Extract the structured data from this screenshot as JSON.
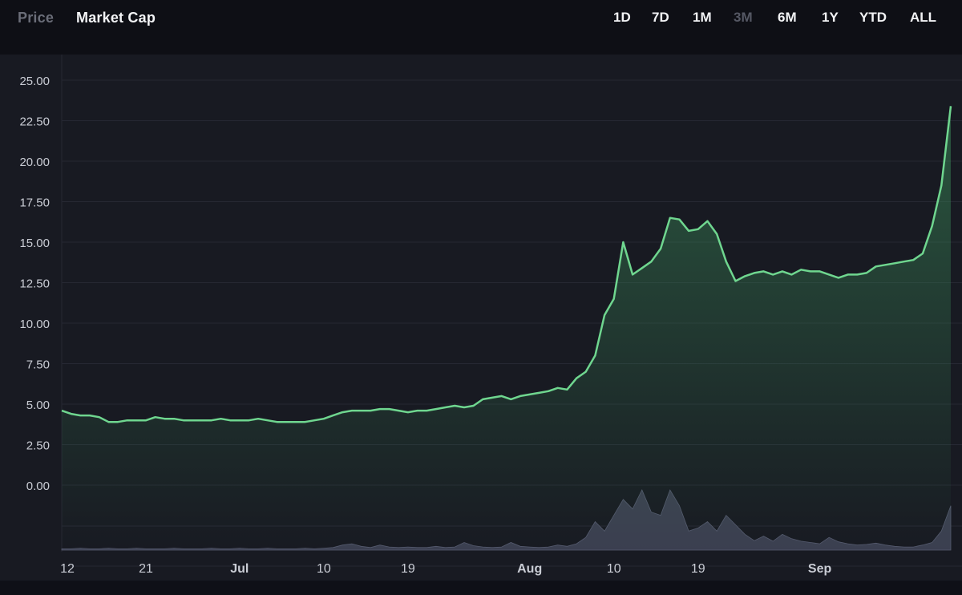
{
  "tabs": [
    {
      "label": "Price",
      "active": false
    },
    {
      "label": "Market Cap",
      "active": true
    }
  ],
  "ranges": [
    "1D",
    "7D",
    "1M",
    "3M",
    "6M",
    "1Y",
    "YTD",
    "ALL"
  ],
  "selected_range": "3M",
  "colors": {
    "line": "#6fd68f",
    "volume": "#3b3f50",
    "grid": "#262833",
    "axis_text": "#c9ccd4",
    "background": "#181a22"
  },
  "chart_data": {
    "type": "area",
    "xlabel": "",
    "ylabel": "",
    "ylim": [
      0,
      25
    ],
    "y_ticks": [
      "25.00",
      "22.50",
      "20.00",
      "17.50",
      "15.00",
      "12.50",
      "10.00",
      "7.50",
      "5.00",
      "2.50",
      "0.00"
    ],
    "x_ticks": [
      {
        "label": "12",
        "day": 0
      },
      {
        "label": "21",
        "day": 9
      },
      {
        "label": "Jul",
        "day": 19
      },
      {
        "label": "10",
        "day": 28
      },
      {
        "label": "19",
        "day": 37
      },
      {
        "label": "Aug",
        "day": 50
      },
      {
        "label": "10",
        "day": 59
      },
      {
        "label": "19",
        "day": 68
      },
      {
        "label": "Sep",
        "day": 81
      }
    ],
    "grid": true,
    "series": [
      {
        "points": [
          [
            0,
            4.6
          ],
          [
            1,
            4.4
          ],
          [
            2,
            4.3
          ],
          [
            3,
            4.3
          ],
          [
            4,
            4.2
          ],
          [
            5,
            3.9
          ],
          [
            6,
            3.9
          ],
          [
            7,
            4.0
          ],
          [
            8,
            4.0
          ],
          [
            9,
            4.0
          ],
          [
            10,
            4.2
          ],
          [
            11,
            4.1
          ],
          [
            12,
            4.1
          ],
          [
            13,
            4.0
          ],
          [
            14,
            4.0
          ],
          [
            15,
            4.0
          ],
          [
            16,
            4.0
          ],
          [
            17,
            4.1
          ],
          [
            18,
            4.0
          ],
          [
            19,
            4.0
          ],
          [
            20,
            4.0
          ],
          [
            21,
            4.1
          ],
          [
            22,
            4.0
          ],
          [
            23,
            3.9
          ],
          [
            24,
            3.9
          ],
          [
            25,
            3.9
          ],
          [
            26,
            3.9
          ],
          [
            27,
            4.0
          ],
          [
            28,
            4.1
          ],
          [
            29,
            4.3
          ],
          [
            30,
            4.5
          ],
          [
            31,
            4.6
          ],
          [
            32,
            4.6
          ],
          [
            33,
            4.6
          ],
          [
            34,
            4.7
          ],
          [
            35,
            4.7
          ],
          [
            36,
            4.6
          ],
          [
            37,
            4.5
          ],
          [
            38,
            4.6
          ],
          [
            39,
            4.6
          ],
          [
            40,
            4.7
          ],
          [
            41,
            4.8
          ],
          [
            42,
            4.9
          ],
          [
            43,
            4.8
          ],
          [
            44,
            4.9
          ],
          [
            45,
            5.3
          ],
          [
            46,
            5.4
          ],
          [
            47,
            5.5
          ],
          [
            48,
            5.3
          ],
          [
            49,
            5.5
          ],
          [
            50,
            5.6
          ],
          [
            51,
            5.7
          ],
          [
            52,
            5.8
          ],
          [
            53,
            6.0
          ],
          [
            54,
            5.9
          ],
          [
            55,
            6.6
          ],
          [
            56,
            7.0
          ],
          [
            57,
            8.0
          ],
          [
            58,
            10.5
          ],
          [
            59,
            11.5
          ],
          [
            60,
            15.0
          ],
          [
            61,
            13.0
          ],
          [
            62,
            13.4
          ],
          [
            63,
            13.8
          ],
          [
            64,
            14.6
          ],
          [
            65,
            16.5
          ],
          [
            66,
            16.4
          ],
          [
            67,
            15.7
          ],
          [
            68,
            15.8
          ],
          [
            69,
            16.3
          ],
          [
            70,
            15.5
          ],
          [
            71,
            13.8
          ],
          [
            72,
            12.6
          ],
          [
            73,
            12.9
          ],
          [
            74,
            13.1
          ],
          [
            75,
            13.2
          ],
          [
            76,
            13.0
          ],
          [
            77,
            13.2
          ],
          [
            78,
            13.0
          ],
          [
            79,
            13.3
          ],
          [
            80,
            13.2
          ],
          [
            81,
            13.2
          ],
          [
            82,
            13.0
          ],
          [
            83,
            12.8
          ],
          [
            84,
            13.0
          ],
          [
            85,
            13.0
          ],
          [
            86,
            13.1
          ],
          [
            87,
            13.5
          ],
          [
            88,
            13.6
          ],
          [
            89,
            13.7
          ],
          [
            90,
            13.8
          ],
          [
            91,
            13.9
          ],
          [
            92,
            14.3
          ],
          [
            93,
            16.0
          ],
          [
            94,
            18.5
          ],
          [
            95,
            23.4
          ]
        ]
      }
    ]
  },
  "volume": [
    0.02,
    0.02,
    0.03,
    0.02,
    0.02,
    0.03,
    0.02,
    0.02,
    0.03,
    0.02,
    0.02,
    0.02,
    0.03,
    0.02,
    0.02,
    0.02,
    0.03,
    0.02,
    0.02,
    0.03,
    0.02,
    0.02,
    0.03,
    0.02,
    0.02,
    0.02,
    0.03,
    0.02,
    0.03,
    0.04,
    0.08,
    0.1,
    0.06,
    0.04,
    0.08,
    0.05,
    0.04,
    0.05,
    0.04,
    0.04,
    0.06,
    0.04,
    0.05,
    0.12,
    0.07,
    0.05,
    0.04,
    0.05,
    0.12,
    0.06,
    0.05,
    0.04,
    0.05,
    0.08,
    0.06,
    0.1,
    0.2,
    0.45,
    0.3,
    0.55,
    0.8,
    0.65,
    0.95,
    0.6,
    0.55,
    0.95,
    0.7,
    0.3,
    0.35,
    0.45,
    0.3,
    0.55,
    0.4,
    0.25,
    0.15,
    0.22,
    0.14,
    0.25,
    0.18,
    0.14,
    0.12,
    0.1,
    0.2,
    0.13,
    0.1,
    0.08,
    0.09,
    0.11,
    0.08,
    0.06,
    0.05,
    0.05,
    0.08,
    0.12,
    0.3,
    0.7
  ]
}
